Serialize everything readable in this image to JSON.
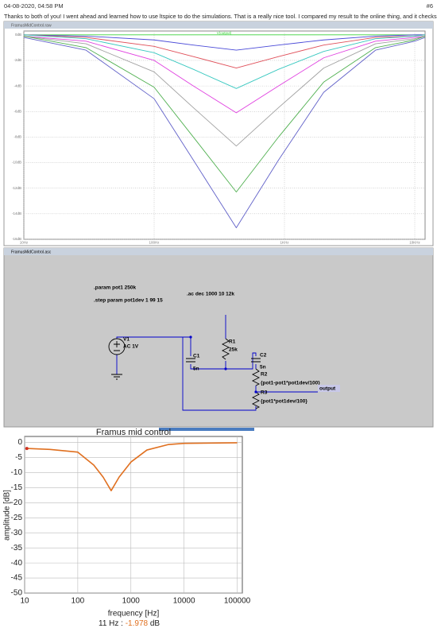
{
  "post": {
    "date": "04-08-2020, 04:58 PM",
    "number": "#6",
    "text": "Thanks to both of you! I went ahead and learned how to use ltspice to do the simulations. That is a really nice tool. I compared my result to the online thing, and it checks out:"
  },
  "chart_data": [
    {
      "type": "line",
      "window_title": "FramusMidControl.raw",
      "trace_label": "V(output)",
      "log_x": true,
      "grid": true,
      "x": [
        10,
        30,
        100,
        200,
        427,
        900,
        2000,
        5000,
        10000,
        12000
      ],
      "xlim": [
        10,
        12000
      ],
      "xticks": [
        {
          "value": 10,
          "label": "10Hz"
        },
        {
          "value": 100,
          "label": "100Hz"
        },
        {
          "value": 1000,
          "label": "1KHz"
        },
        {
          "value": 10000,
          "label": "10KHz"
        }
      ],
      "ylim": [
        -16,
        0.3
      ],
      "yticks": [
        {
          "value": 0,
          "label": "0dB"
        },
        {
          "value": -2,
          "label": "-2dB"
        },
        {
          "value": -4,
          "label": "-4dB"
        },
        {
          "value": -6,
          "label": "-6dB"
        },
        {
          "value": -8,
          "label": "-8dB"
        },
        {
          "value": -10,
          "label": "-10dB"
        },
        {
          "value": -12,
          "label": "-12dB"
        },
        {
          "value": -14,
          "label": "-14dB"
        },
        {
          "value": -16,
          "label": "-16dB"
        }
      ],
      "series": [
        {
          "color": "#3cd23c",
          "values": [
            0,
            0,
            0,
            0,
            0,
            0,
            0,
            0,
            0,
            0
          ]
        },
        {
          "color": "#4a4ad8",
          "values": [
            0,
            -0.1,
            -0.4,
            -0.8,
            -1.2,
            -0.8,
            -0.4,
            -0.1,
            0,
            0
          ]
        },
        {
          "color": "#e0505a",
          "values": [
            0,
            -0.2,
            -0.9,
            -1.7,
            -2.6,
            -1.7,
            -0.8,
            -0.2,
            -0.1,
            0
          ]
        },
        {
          "color": "#38c8c0",
          "values": [
            0,
            -0.3,
            -1.4,
            -2.7,
            -4.2,
            -2.7,
            -1.3,
            -0.3,
            -0.1,
            0
          ]
        },
        {
          "color": "#e040e0",
          "values": [
            -0.1,
            -0.5,
            -2.0,
            -4.0,
            -6.1,
            -4.0,
            -1.8,
            -0.5,
            -0.2,
            -0.1
          ]
        },
        {
          "color": "#a0a0a0",
          "values": [
            -0.1,
            -0.7,
            -2.9,
            -5.7,
            -8.7,
            -5.7,
            -2.6,
            -0.7,
            -0.3,
            -0.1
          ]
        },
        {
          "color": "#50b050",
          "values": [
            -0.1,
            -1.0,
            -4.1,
            -8.0,
            -12.3,
            -8.0,
            -3.7,
            -1.0,
            -0.4,
            -0.1
          ]
        },
        {
          "color": "#6060c8",
          "values": [
            -0.2,
            -1.2,
            -5.0,
            -9.8,
            -15.1,
            -9.8,
            -4.5,
            -1.2,
            -0.5,
            -0.2
          ]
        }
      ]
    },
    {
      "type": "line",
      "title": "Framus mid control",
      "x_label": "frequency [Hz]",
      "y_label": "amplitude [dB]",
      "log_x": true,
      "grid": true,
      "x": [
        11,
        30,
        100,
        200,
        300,
        425,
        600,
        1000,
        2000,
        5000,
        10000,
        100000
      ],
      "xlim": [
        10,
        125000
      ],
      "xticks": [
        10,
        100,
        1000,
        10000,
        100000
      ],
      "ylim": [
        -50,
        2
      ],
      "yticks": [
        0,
        -5,
        -10,
        -15,
        -20,
        -25,
        -30,
        -35,
        -40,
        -45,
        -50
      ],
      "series": [
        {
          "color": "#e07020",
          "values": [
            -1.978,
            -2.3,
            -3.2,
            -7.5,
            -11.5,
            -16,
            -11.5,
            -6.5,
            -2.5,
            -0.7,
            -0.3,
            -0.1
          ]
        }
      ],
      "readout": {
        "prefix": "11 Hz :",
        "x": 11,
        "value": -1.978,
        "unit": "dB"
      }
    }
  ],
  "schematic": {
    "window_title": "FramusMidControl.asc",
    "directives": [
      ".param pot1 250k",
      ".step param pot1dev 1 99 15",
      ".ac dec 1000 10 12k"
    ],
    "V1": {
      "name": "V1",
      "value": "AC 1V"
    },
    "C1": {
      "name": "C1",
      "value": "5n"
    },
    "R1": {
      "name": "R1",
      "value": "25k"
    },
    "C2": {
      "name": "C2",
      "value": "5n"
    },
    "R2": {
      "name": "R2",
      "value": "{pot1-pot1*pot1dev/100}"
    },
    "R3": {
      "name": "R3",
      "value": "{pot1*pot1dev/100}"
    },
    "output": "output"
  }
}
